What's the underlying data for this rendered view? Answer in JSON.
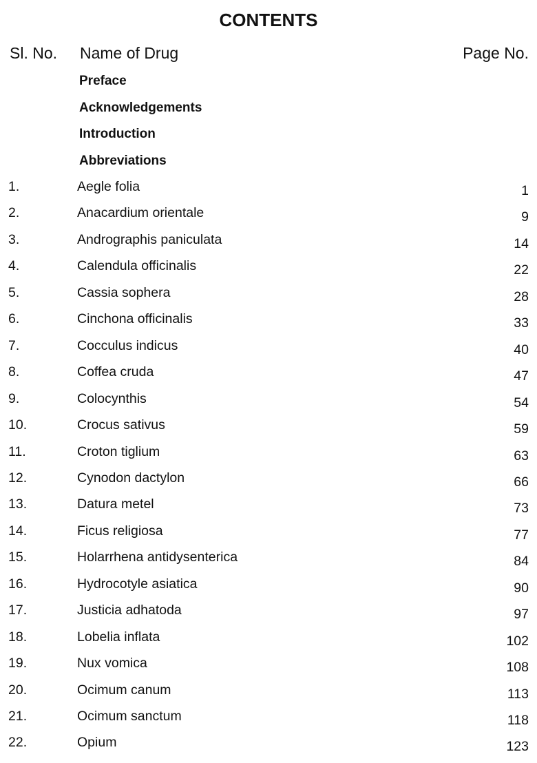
{
  "title": "CONTENTS",
  "headers": {
    "sl_no": "Sl. No.",
    "name": "Name of Drug",
    "page": "Page No."
  },
  "front_matter": [
    "Preface",
    "Acknowledgements",
    "Introduction",
    "Abbreviations"
  ],
  "entries": [
    {
      "no": "1.",
      "name": "Aegle folia",
      "page": "1"
    },
    {
      "no": "2.",
      "name": "Anacardium orientale",
      "page": "9"
    },
    {
      "no": "3.",
      "name": "Andrographis paniculata",
      "page": "14"
    },
    {
      "no": "4.",
      "name": "Calendula officinalis",
      "page": "22"
    },
    {
      "no": "5.",
      "name": "Cassia sophera",
      "page": "28"
    },
    {
      "no": "6.",
      "name": "Cinchona officinalis",
      "page": "33"
    },
    {
      "no": "7.",
      "name": "Cocculus indicus",
      "page": "40"
    },
    {
      "no": "8.",
      "name": "Coffea cruda",
      "page": "47"
    },
    {
      "no": "9.",
      "name": "Colocynthis",
      "page": "54"
    },
    {
      "no": "10.",
      "name": "Crocus sativus",
      "page": "59"
    },
    {
      "no": "11.",
      "name": "Croton tiglium",
      "page": "63"
    },
    {
      "no": "12.",
      "name": "Cynodon dactylon",
      "page": "66"
    },
    {
      "no": "13.",
      "name": "Datura metel",
      "page": "73"
    },
    {
      "no": "14.",
      "name": "Ficus religiosa",
      "page": "77"
    },
    {
      "no": "15.",
      "name": "Holarrhena antidysenterica",
      "page": "84"
    },
    {
      "no": "16.",
      "name": "Hydrocotyle asiatica",
      "page": "90"
    },
    {
      "no": "17.",
      "name": "Justicia adhatoda",
      "page": "97"
    },
    {
      "no": "18.",
      "name": "Lobelia inflata",
      "page": "102"
    },
    {
      "no": "19.",
      "name": "Nux vomica",
      "page": "108"
    },
    {
      "no": "20.",
      "name": "Ocimum canum",
      "page": "113"
    },
    {
      "no": "21.",
      "name": "Ocimum sanctum",
      "page": "118"
    },
    {
      "no": "22.",
      "name": "Opium",
      "page": "123"
    }
  ]
}
